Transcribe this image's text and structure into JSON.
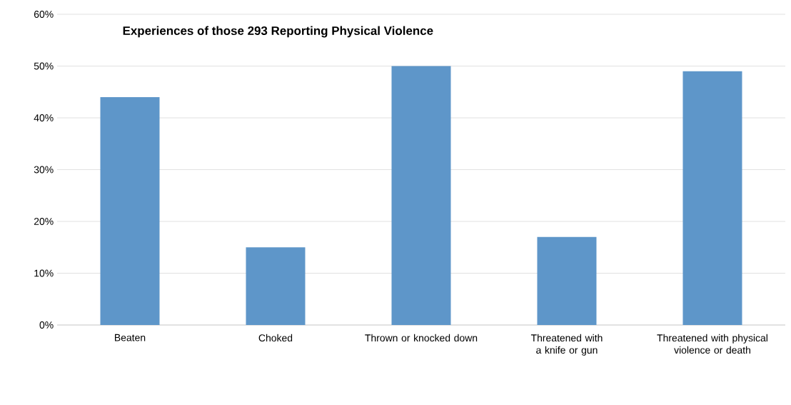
{
  "chart_data": {
    "type": "bar",
    "title": "Experiences of those 293 Reporting Physical Violence",
    "categories": [
      "Beaten",
      "Choked",
      "Thrown or knocked down",
      "Threatened with a knife or gun",
      "Threatened with physical violence or death"
    ],
    "values": [
      44,
      15,
      50,
      17,
      49
    ],
    "color": "#5e96c9",
    "ylim": [
      0,
      60
    ],
    "yticks": [
      {
        "value": 0,
        "label": "0%"
      },
      {
        "value": 10,
        "label": "10%"
      },
      {
        "value": 20,
        "label": "20%"
      },
      {
        "value": 30,
        "label": "30%"
      },
      {
        "value": 40,
        "label": "40%"
      },
      {
        "value": 50,
        "label": "50%"
      },
      {
        "value": 60,
        "label": "60%"
      }
    ],
    "grid": "y"
  }
}
